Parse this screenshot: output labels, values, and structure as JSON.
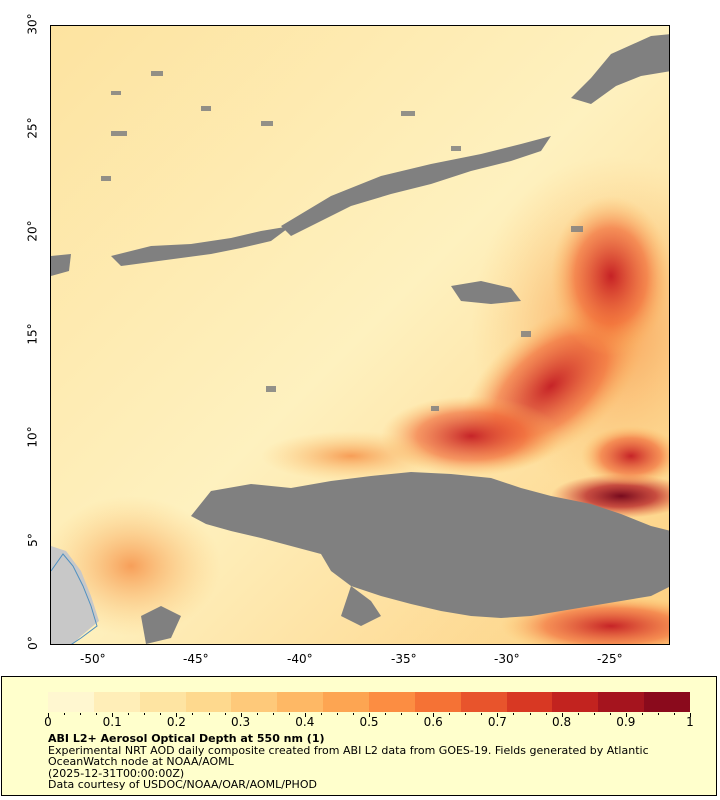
{
  "map": {
    "x_ticks": [
      "-50°",
      "-45°",
      "-40°",
      "-35°",
      "-30°",
      "-25°"
    ],
    "y_ticks": [
      "30°",
      "25°",
      "20°",
      "15°",
      "10°",
      "5°",
      "0°"
    ],
    "colors": {
      "missing": "#808080",
      "land": "#c8c8c8",
      "low": "#fff2c2",
      "mid": "#fdb85a",
      "high": "#d7191c",
      "max": "#800020"
    }
  },
  "legend": {
    "colorbar_labels": [
      "0",
      "0.1",
      "0.2",
      "0.3",
      "0.4",
      "0.5",
      "0.6",
      "0.7",
      "0.8",
      "0.9",
      "1"
    ],
    "colorbar_colors": [
      "#fff7d0",
      "#ffeeb8",
      "#fee4a2",
      "#fed98e",
      "#fec97a",
      "#feb865",
      "#fda552",
      "#fc8d42",
      "#f57235",
      "#e8542c",
      "#d83823",
      "#c2231f",
      "#a5141e",
      "#8a0a1c"
    ],
    "title": "ABI L2+ Aerosol Optical Depth at 550 nm (1)",
    "line1": "Experimental NRT AOD daily composite created from ABI L2 data from GOES-19. Fields generated by Atlantic OceanWatch node at NOAA/AOML",
    "line2": "(2025-12-31T00:00:00Z)",
    "line3": "Data courtesy of USDOC/NOAA/OAR/AOML/PHOD"
  }
}
